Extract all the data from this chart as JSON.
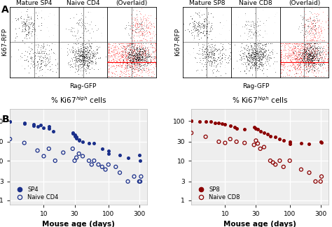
{
  "panel_A_left_titles": [
    "Mature SP4",
    "Naive CD4",
    "(Overlaid)"
  ],
  "panel_A_right_titles": [
    "Mature SP8",
    "Naive CD8",
    "(Overlaid)"
  ],
  "A_xlabel": "Rag-GFP",
  "A_ylabel_left": "Ki67-RFP",
  "A_ylabel_right": "Ki67-RFP",
  "B_xlabel": "Mouse age (days)",
  "blue": "#1a2f8a",
  "red": "#8b0000",
  "sp4_x": [
    3,
    3,
    5,
    5,
    7,
    7,
    8,
    9,
    10,
    12,
    12,
    14,
    28,
    28,
    30,
    30,
    32,
    32,
    35,
    35,
    40,
    50,
    60,
    80,
    100,
    100,
    150,
    200,
    300,
    310
  ],
  "sp4_y": [
    95,
    97,
    90,
    85,
    82,
    75,
    72,
    80,
    68,
    72,
    65,
    55,
    50,
    48,
    45,
    42,
    40,
    36,
    34,
    32,
    30,
    28,
    28,
    20,
    18,
    15,
    14,
    12,
    14,
    10
  ],
  "naive_cd4_x": [
    3,
    5,
    8,
    10,
    12,
    15,
    20,
    28,
    30,
    32,
    35,
    40,
    50,
    55,
    60,
    70,
    80,
    90,
    100,
    130,
    150,
    200,
    250,
    300,
    310,
    320
  ],
  "naive_cd4_y": [
    35,
    28,
    18,
    13,
    20,
    10,
    16,
    20,
    10,
    12,
    15,
    13,
    10,
    8,
    10,
    8,
    7,
    6,
    8,
    7,
    5,
    3,
    4,
    3,
    3,
    4
  ],
  "sp8_x": [
    3,
    3,
    4,
    5,
    6,
    7,
    8,
    9,
    10,
    12,
    14,
    15,
    20,
    28,
    30,
    32,
    35,
    40,
    45,
    50,
    60,
    70,
    80,
    100,
    100,
    150,
    200,
    300,
    310
  ],
  "sp8_y": [
    100,
    99,
    98,
    97,
    95,
    90,
    88,
    87,
    82,
    77,
    70,
    65,
    62,
    70,
    65,
    62,
    55,
    50,
    47,
    42,
    40,
    35,
    32,
    30,
    27,
    28,
    27,
    30,
    29
  ],
  "naive_cd8_x": [
    3,
    5,
    8,
    10,
    12,
    15,
    20,
    28,
    30,
    32,
    35,
    40,
    50,
    55,
    60,
    70,
    80,
    100,
    150,
    200,
    250,
    300,
    310
  ],
  "naive_cd8_y": [
    50,
    40,
    30,
    28,
    35,
    30,
    28,
    25,
    32,
    27,
    20,
    22,
    10,
    9,
    8,
    10,
    7,
    10,
    6,
    5,
    3,
    3,
    4
  ],
  "yticks": [
    1,
    3,
    10,
    30,
    100
  ],
  "xticks": [
    10,
    30,
    100,
    300
  ],
  "xmin": 3,
  "xmax": 400,
  "ymin": 0.8,
  "ymax": 200,
  "bg_gray": "#eeeeee"
}
